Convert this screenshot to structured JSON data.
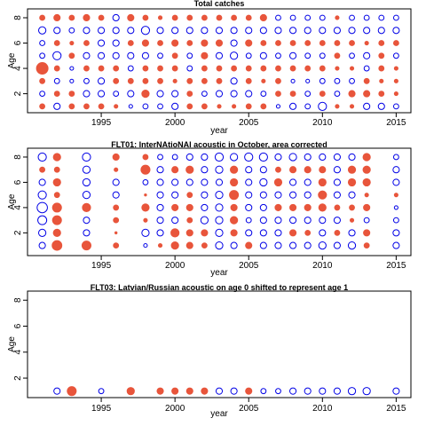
{
  "chart_data": [
    {
      "type": "scatter",
      "title": "Total catches",
      "xlabel": "year",
      "ylabel": "Age",
      "xlim": [
        1990,
        2016
      ],
      "ylim": [
        0.5,
        8.7
      ],
      "xticks": [
        1995,
        2000,
        2005,
        2010,
        2015
      ],
      "yticks": [
        2,
        4,
        6,
        8
      ],
      "ages": [
        1,
        2,
        3,
        4,
        5,
        6,
        7,
        8
      ],
      "years": [
        1991,
        1992,
        1993,
        1994,
        1995,
        1996,
        1997,
        1998,
        1999,
        2000,
        2001,
        2002,
        2003,
        2004,
        2005,
        2006,
        2007,
        2008,
        2009,
        2010,
        2011,
        2012,
        2013,
        2014,
        2015
      ],
      "residuals": [
        [
          0.2,
          -0.3,
          0.2,
          0.2,
          0.2,
          0.1,
          -0.1,
          -0.2,
          -0.2,
          -0.3,
          0.2,
          0.2,
          0.1,
          0.1,
          0.2,
          0.2,
          -0.1,
          -0.3,
          -0.2,
          -0.5,
          0.1,
          0.1,
          -0.3,
          -0.3,
          -0.2
        ],
        [
          -0.2,
          0.2,
          0.2,
          -0.3,
          -0.3,
          -0.2,
          -0.3,
          0.4,
          -0.3,
          -0.3,
          0.2,
          -0.2,
          -0.3,
          -0.3,
          -0.3,
          -0.2,
          0.2,
          0.2,
          -0.2,
          0.2,
          -0.2,
          0.3,
          0.3,
          0.2,
          0.1
        ],
        [
          0.2,
          -0.2,
          -0.1,
          -0.2,
          -0.3,
          0.2,
          0.2,
          0.2,
          0.2,
          0.1,
          0.2,
          0.2,
          0.2,
          -0.3,
          0.2,
          0.1,
          0.2,
          -0.1,
          -0.1,
          -0.2,
          -0.2,
          -0.2,
          0.2,
          0.1,
          0.1
        ],
        [
          1.0,
          0.2,
          -0.1,
          0.2,
          0.2,
          0.2,
          -0.2,
          0.2,
          0.2,
          0.2,
          -0.2,
          0.2,
          0.2,
          0.2,
          0.2,
          0.2,
          0.2,
          0.2,
          0.2,
          0.2,
          0.1,
          0.1,
          -0.2,
          0.2,
          0.1
        ],
        [
          -0.2,
          -0.5,
          0.2,
          -0.3,
          -0.3,
          -0.3,
          -0.3,
          -0.3,
          -0.2,
          0.2,
          -0.2,
          0.3,
          -0.3,
          -0.4,
          -0.2,
          -0.3,
          -0.2,
          -0.3,
          -0.2,
          -0.2,
          0.2,
          -0.2,
          -0.3,
          0.2,
          -0.2
        ],
        [
          -0.2,
          0.2,
          0.1,
          0.2,
          -0.3,
          -0.3,
          0.2,
          0.3,
          0.2,
          0.3,
          0.2,
          0.3,
          0.3,
          -0.3,
          0.3,
          0.2,
          0.2,
          0.2,
          0.2,
          0.2,
          0.2,
          0.2,
          0.1,
          0.2,
          0.2
        ],
        [
          -0.4,
          -0.3,
          -0.2,
          -0.3,
          -0.3,
          -0.3,
          -0.3,
          -0.5,
          -0.3,
          -0.3,
          -0.3,
          -0.3,
          -0.3,
          -0.3,
          -0.3,
          -0.3,
          -0.3,
          -0.3,
          -0.3,
          -0.3,
          -0.3,
          -0.3,
          -0.3,
          -0.3,
          -0.3
        ],
        [
          0.2,
          0.3,
          0.2,
          0.3,
          0.2,
          -0.3,
          0.3,
          0.2,
          0.1,
          0.2,
          0.2,
          0.2,
          0.2,
          0.2,
          0.2,
          0.3,
          -0.2,
          -0.2,
          -0.2,
          -0.2,
          0.1,
          -0.2,
          -0.2,
          -0.2,
          -0.2
        ]
      ]
    },
    {
      "type": "scatter",
      "title": "FLT01:       InterNAtioNAl acoustic in October, area corrected",
      "xlabel": "year",
      "ylabel": "Age",
      "xlim": [
        1990,
        2016
      ],
      "ylim": [
        0.2,
        8.7
      ],
      "xticks": [
        1995,
        2000,
        2005,
        2010,
        2015
      ],
      "yticks": [
        2,
        4,
        6,
        8
      ],
      "ages": [
        1,
        2,
        3,
        4,
        5,
        6,
        7,
        8
      ],
      "years": [
        1991,
        1992,
        1994,
        1996,
        1998,
        1999,
        2000,
        2001,
        2002,
        2003,
        2004,
        2005,
        2006,
        2007,
        2008,
        2009,
        2010,
        2011,
        2012,
        2013,
        2015
      ],
      "residuals": [
        [
          -0.3,
          0.7,
          0.6,
          0.2,
          -0.1,
          0.1,
          0.4,
          0.3,
          0.2,
          -0.4,
          -0.3,
          0.3,
          -0.3,
          -0.3,
          -0.3,
          -0.3,
          -0.4,
          -0.3,
          -0.4,
          0.2,
          -0.3
        ],
        [
          -0.4,
          0.4,
          -0.3,
          0.0,
          -0.4,
          -0.3,
          0.5,
          0.3,
          0.3,
          -0.4,
          0.3,
          -0.3,
          -0.3,
          -0.3,
          0.3,
          0.2,
          -0.3,
          0.2,
          -0.3,
          0.3,
          -0.3
        ],
        [
          -0.6,
          0.6,
          -0.3,
          0.2,
          0.1,
          -0.3,
          -0.3,
          0.2,
          -0.4,
          -0.4,
          0.4,
          -0.2,
          -0.3,
          -0.3,
          -0.3,
          -0.3,
          -0.3,
          -0.3,
          0.1,
          -0.2,
          -0.2
        ],
        [
          -0.8,
          0.6,
          0.5,
          0.2,
          0.4,
          -0.3,
          0.3,
          0.3,
          -0.3,
          -0.4,
          0.3,
          -0.3,
          -0.3,
          0.3,
          0.3,
          0.3,
          0.4,
          0.2,
          0.2,
          0.3,
          -0.1
        ],
        [
          -0.5,
          0.2,
          -0.4,
          -0.3,
          0.0,
          -0.3,
          -0.3,
          0.2,
          -0.3,
          -0.4,
          0.6,
          -0.3,
          -0.3,
          -0.3,
          -0.3,
          -0.3,
          0.5,
          -0.3,
          -0.3,
          0.1,
          0.1
        ],
        [
          -0.3,
          0.4,
          -0.4,
          -0.3,
          -0.2,
          -0.3,
          -0.3,
          -0.3,
          -0.3,
          -0.3,
          0.4,
          -0.3,
          -0.4,
          0.4,
          -0.3,
          -0.3,
          0.4,
          -0.3,
          0.4,
          0.4,
          -0.3
        ],
        [
          0.2,
          0.2,
          -0.4,
          0.1,
          0.6,
          -0.3,
          0.3,
          0.4,
          -0.3,
          -0.4,
          0.4,
          -0.3,
          -0.3,
          0.2,
          0.3,
          0.3,
          0.3,
          -0.3,
          0.4,
          0.4,
          -0.3
        ],
        [
          -0.5,
          0.4,
          -0.5,
          0.3,
          0.2,
          -0.2,
          -0.2,
          -0.3,
          -0.3,
          -0.5,
          -0.4,
          -0.5,
          -0.5,
          -0.3,
          -0.4,
          -0.3,
          -0.3,
          -0.3,
          -0.3,
          0.4,
          -0.2
        ]
      ]
    },
    {
      "type": "scatter",
      "title": "FLT03: Latvian/Russian acoustic on age 0 shifted to represent age 1",
      "xlabel": "year",
      "ylabel": "Age",
      "xlim": [
        1990,
        2016
      ],
      "ylim": [
        0.5,
        8.7
      ],
      "xticks": [
        1995,
        2000,
        2005,
        2010,
        2015
      ],
      "yticks": [
        2,
        4,
        6,
        8
      ],
      "ages": [
        1
      ],
      "years": [
        1992,
        1993,
        1995,
        1997,
        1999,
        2000,
        2001,
        2002,
        2003,
        2004,
        2005,
        2006,
        2007,
        2008,
        2009,
        2010,
        2011,
        2012,
        2013,
        2015
      ],
      "residuals": [
        [
          -0.3,
          0.6,
          -0.2,
          0.4,
          0.3,
          0.3,
          0.3,
          0.3,
          -0.3,
          -0.3,
          0.3,
          -0.2,
          -0.2,
          -0.3,
          -0.3,
          -0.3,
          -0.3,
          -0.4,
          -0.4,
          -0.3
        ]
      ]
    }
  ],
  "colors": {
    "positive": "#e8553b",
    "negative": "#0000e6",
    "frame": "#000000"
  }
}
